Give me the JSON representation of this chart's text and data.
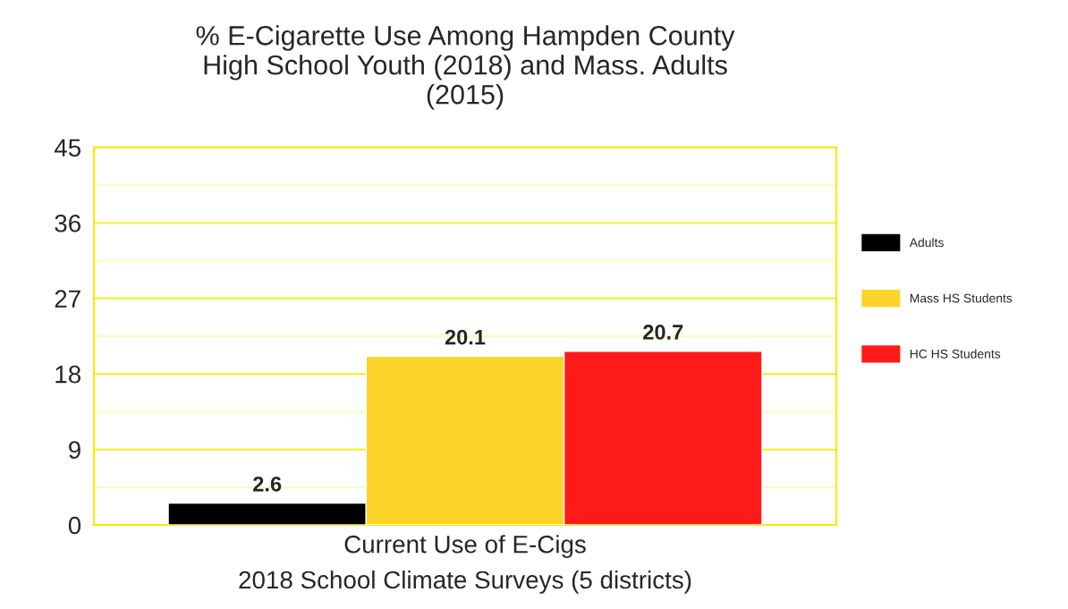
{
  "chart_data": {
    "type": "bar",
    "title": "% E-Cigarette Use Among Hampden County\nHigh School Youth (2018) and Mass. Adults\n(2015)",
    "categories": [
      "Current Use of E-Cigs"
    ],
    "xlabel": "2018 School Climate Surveys (5 districts)",
    "series": [
      {
        "name": "Adults",
        "color": "#000000",
        "values": [
          2.6
        ]
      },
      {
        "name": "Mass HS Students",
        "color": "#ffd42a",
        "values": [
          20.1
        ]
      },
      {
        "name": "HC HS Students",
        "color": "#ff1a1a",
        "values": [
          20.7
        ]
      }
    ],
    "ylim": [
      0,
      45
    ],
    "yticks": [
      0,
      {
        "value": 4.5,
        "label": null
      },
      9,
      {
        "value": 13.5,
        "label": null
      },
      18,
      {
        "value": 22.5,
        "label": null
      },
      27,
      {
        "value": 31.5,
        "label": null
      },
      36,
      {
        "value": 40.5,
        "label": null
      },
      45
    ],
    "grid": "y",
    "legend": "right",
    "data_labels": true
  }
}
